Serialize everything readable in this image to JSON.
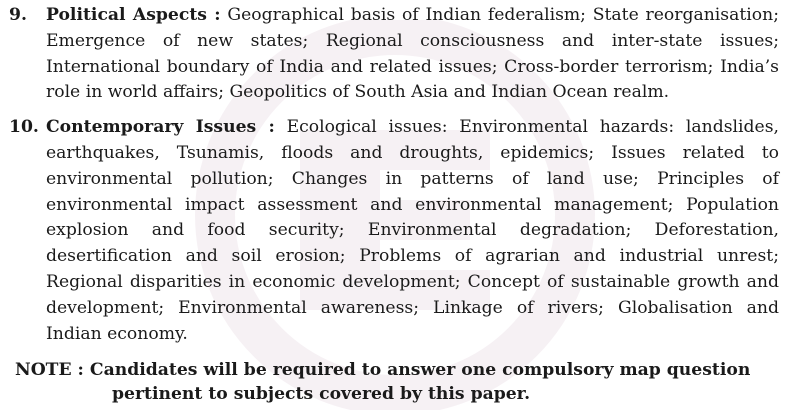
{
  "items": [
    {
      "number": "9.",
      "heading": "Political Aspects :",
      "text": " Geographical basis of Indian federalism; State reorganisation; Emergence of new states; Regional consciousness and inter-state issues; International boundary of India and related issues; Cross-border terrorism; India’s role in world affairs;  Geopolitics of South Asia and Indian  Ocean realm."
    },
    {
      "number": "10.",
      "heading": "Contemporary Issues :",
      "text": " Ecological issues: Environmental hazards: landslides, earthquakes, Tsunamis, floods and droughts, epidemics; Issues related to environmental pollution; Changes in patterns of land use; Principles of environmental impact assessment and environmental management; Population explosion and food security; Environmental degradation; Deforestation, desertification and soil erosion; Problems of agrarian and industrial unrest; Regional disparities in economic development; Concept of sustainable growth and development; Environmental awareness; Linkage of rivers; Globalisation and Indian economy."
    }
  ],
  "note": {
    "label": "NOTE :",
    "line1": " Candidates will be required to answer one compulsory map question",
    "line2": "pertinent to subjects covered by this paper."
  },
  "colors": {
    "text": "#1a1a1a",
    "watermark": "#7a1f5c"
  }
}
